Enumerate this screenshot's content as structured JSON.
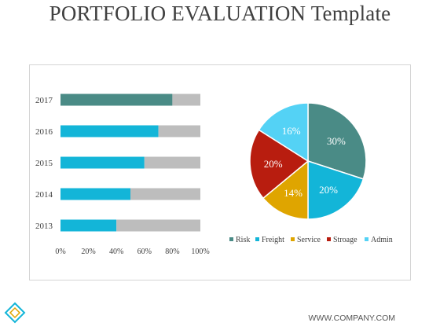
{
  "title": "PORTFOLIO EVALUATION Template",
  "footer": "WWW.COMPANY.COM",
  "chart_data": [
    {
      "type": "bar",
      "orientation": "horizontal",
      "stacked": true,
      "categories": [
        "2017",
        "2016",
        "2015",
        "2014",
        "2013"
      ],
      "values": [
        80,
        70,
        60,
        50,
        40
      ],
      "remainder_values": [
        20,
        30,
        40,
        50,
        60
      ],
      "highlight_category": "2017",
      "xlim": [
        0,
        100
      ],
      "xticks": [
        "0%",
        "20%",
        "40%",
        "60%",
        "80%",
        "100%"
      ],
      "colors": {
        "bar": "#13b5d8",
        "highlight": "#4a8b86",
        "remainder": "#bdbdbd"
      }
    },
    {
      "type": "pie",
      "labels": [
        "Risk",
        "Freight",
        "Service",
        "Stroage",
        "Admin"
      ],
      "values": [
        30,
        20,
        14,
        20,
        16
      ],
      "value_labels": [
        "30%",
        "20%",
        "14%",
        "20%",
        "16%"
      ],
      "colors": [
        "#4a8b86",
        "#13b5d8",
        "#dfa500",
        "#b81d0f",
        "#54d2f5"
      ],
      "legend": "bottom"
    }
  ]
}
